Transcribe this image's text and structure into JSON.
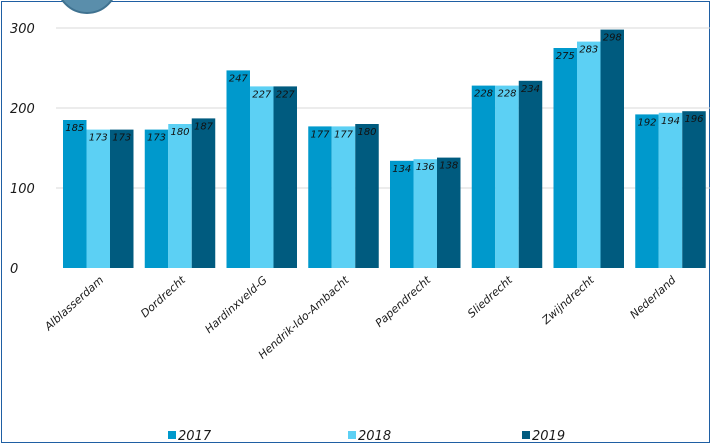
{
  "chart_data": {
    "type": "bar",
    "categories": [
      "Alblasserdam",
      "Dordrecht",
      "Hardinxveld-G",
      "Hendrik-Ido-Ambacht",
      "Papendrecht",
      "Sliedrecht",
      "Zwijndrecht",
      "Nederland"
    ],
    "series": [
      {
        "name": "2017",
        "values": [
          185,
          173,
          247,
          177,
          134,
          228,
          275,
          192
        ],
        "color": "#0099cc"
      },
      {
        "name": "2018",
        "values": [
          173,
          180,
          227,
          177,
          136,
          228,
          283,
          194
        ],
        "color": "#5cd0f4"
      },
      {
        "name": "2019",
        "values": [
          173,
          187,
          227,
          180,
          138,
          234,
          298,
          196
        ],
        "color": "#005b7f"
      }
    ],
    "data_labels": [
      [
        "185",
        "173",
        "247",
        "177",
        "134",
        "228",
        "275",
        "192"
      ],
      [
        "173",
        "180",
        "227",
        "177",
        "136",
        "228",
        "283",
        "194"
      ],
      [
        "173",
        "187",
        "227",
        "180",
        "138",
        "234",
        "298",
        "196"
      ]
    ],
    "y_ticks": [
      "0",
      "100",
      "200",
      "300"
    ],
    "ylim": [
      0,
      300
    ],
    "grid": "horizontal",
    "legend_position": "bottom",
    "title": "",
    "xlabel": "",
    "ylabel": ""
  }
}
